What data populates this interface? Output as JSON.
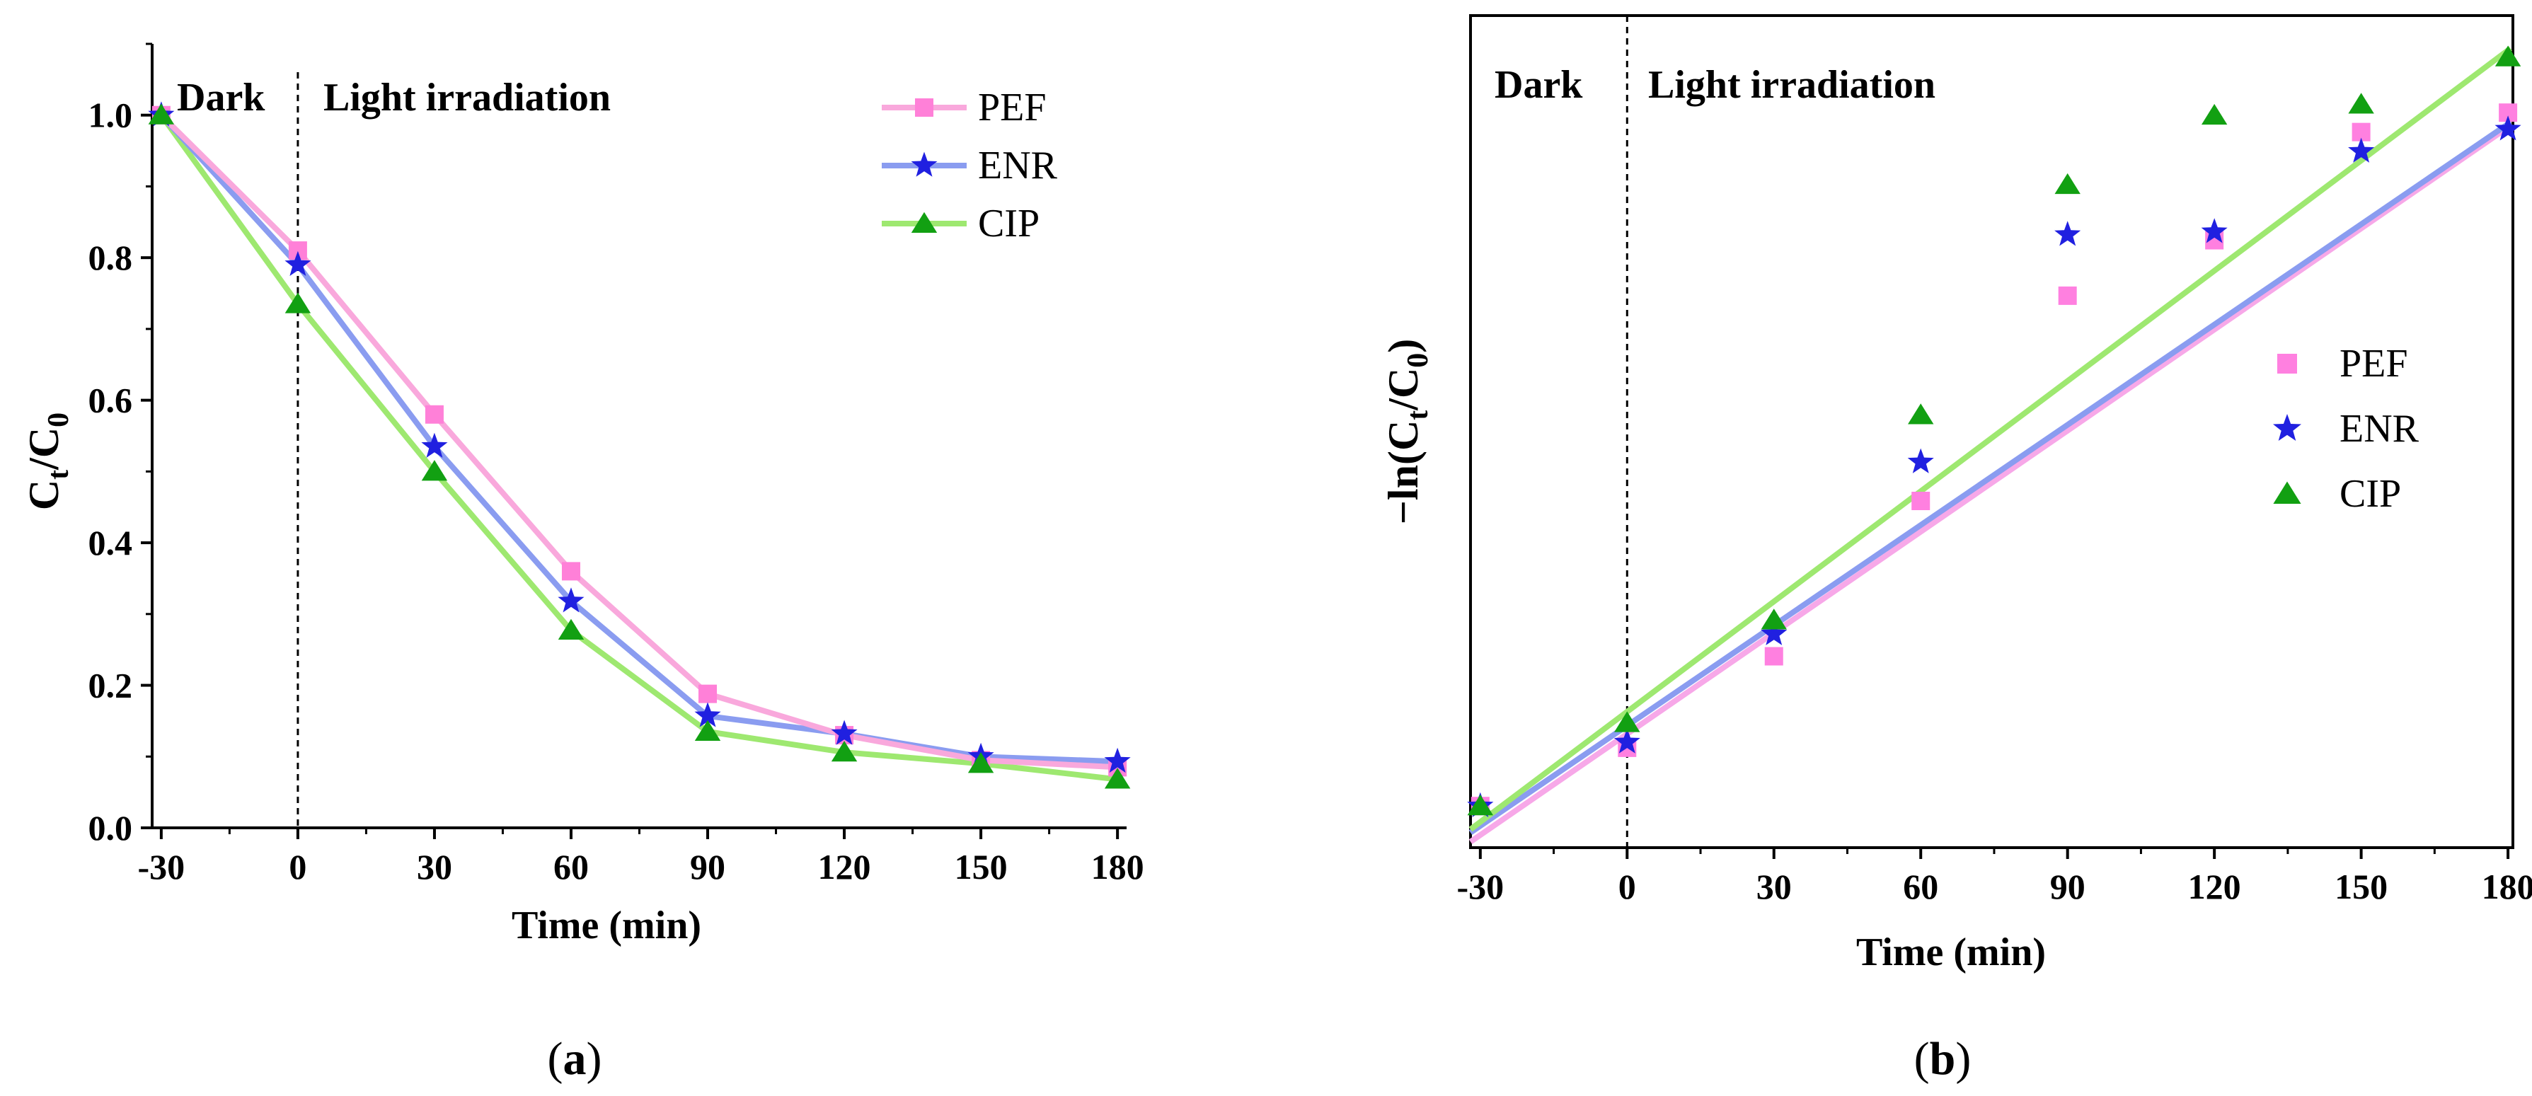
{
  "chart_data": [
    {
      "type": "line",
      "panel_label": "a",
      "xlabel": "Time (min)",
      "ylabel_main": "C",
      "ylabel_sub1": "t",
      "ylabel_mid": "/C",
      "ylabel_sub2": "0",
      "xlim": [
        -32,
        182
      ],
      "ylim": [
        0,
        1.1
      ],
      "xticks": [
        -30,
        0,
        30,
        60,
        90,
        120,
        150,
        180
      ],
      "yticks": [
        0.0,
        0.2,
        0.4,
        0.6,
        0.8,
        1.0
      ],
      "ytick_labels": [
        "0.0",
        "0.2",
        "0.4",
        "0.6",
        "0.8",
        "1.0"
      ],
      "region_labels": {
        "dark": "Dark",
        "light": "Light irradiation"
      },
      "divider_x": 0,
      "legend_position": "top-right",
      "x": [
        -30,
        0,
        30,
        60,
        90,
        120,
        150,
        180
      ],
      "series": [
        {
          "name": "PEF",
          "color": "#ff80d8",
          "line_color": "#f9a8dc",
          "marker": "square",
          "values": [
            1.0,
            0.81,
            0.58,
            0.36,
            0.188,
            0.13,
            0.095,
            0.085
          ]
        },
        {
          "name": "ENR",
          "color": "#2020e0",
          "line_color": "#8a9cf0",
          "marker": "star",
          "values": [
            1.0,
            0.79,
            0.535,
            0.318,
            0.157,
            0.132,
            0.1,
            0.093
          ]
        },
        {
          "name": "CIP",
          "color": "#12a012",
          "line_color": "#9ee870",
          "marker": "triangle",
          "values": [
            1.0,
            0.735,
            0.5,
            0.277,
            0.135,
            0.106,
            0.09,
            0.068
          ]
        }
      ]
    },
    {
      "type": "scatter",
      "panel_label": "b",
      "xlabel": "Time (min)",
      "ylabel_main": "−ln(C",
      "ylabel_sub1": "t",
      "ylabel_mid": "/C",
      "ylabel_sub2": "0",
      "ylabel_end": ")",
      "xlim": [
        -32,
        181
      ],
      "ylim": [
        -0.15,
        2.85
      ],
      "xticks": [
        -30,
        0,
        30,
        60,
        90,
        120,
        150,
        180
      ],
      "yticks": [],
      "region_labels": {
        "dark": "Dark",
        "light": "Light irradiation"
      },
      "divider_x": 0,
      "legend_position": "right",
      "x": [
        -30,
        0,
        30,
        60,
        90,
        120,
        150,
        180
      ],
      "series": [
        {
          "name": "PEF",
          "color": "#ff80e0",
          "fit_color": "#f7a8e8",
          "marker": "square",
          "values": [
            0.0,
            0.21,
            0.54,
            1.1,
            1.84,
            2.04,
            2.43,
            2.5
          ],
          "fit": {
            "intercept": 0.26,
            "slope": 0.01215
          }
        },
        {
          "name": "ENR",
          "color": "#2020e0",
          "fit_color": "#8a9cf0",
          "marker": "star",
          "values": [
            0.0,
            0.23,
            0.62,
            1.24,
            2.06,
            2.07,
            2.36,
            2.44
          ],
          "fit": {
            "intercept": 0.29,
            "slope": 0.01205
          }
        },
        {
          "name": "CIP",
          "color": "#12a012",
          "fit_color": "#9ee870",
          "marker": "triangle",
          "values": [
            0.0,
            0.3,
            0.67,
            1.41,
            2.24,
            2.49,
            2.53,
            2.7
          ],
          "fit": {
            "intercept": 0.34,
            "slope": 0.01325
          }
        }
      ]
    }
  ]
}
